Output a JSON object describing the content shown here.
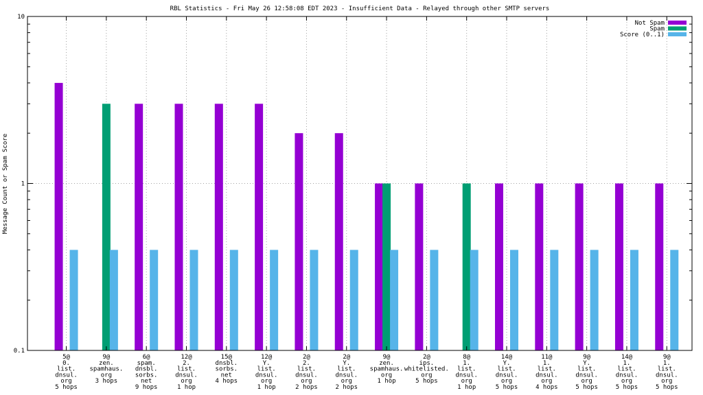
{
  "chart_data": {
    "type": "bar",
    "title": "RBL Statistics - Fri May 26 12:58:08 EDT 2023 - Insufficient Data - Relayed through other SMTP servers",
    "xlabel": "",
    "ylabel": "Message Count or Spam Score",
    "yscale": "log",
    "ylim": [
      0.1,
      10
    ],
    "yticks": [
      "0.1",
      "1",
      "10"
    ],
    "grid": true,
    "legend_position": "top-right",
    "categories": [
      [
        "5@",
        "0.",
        "list.",
        "dnsul.",
        "org",
        "5 hops"
      ],
      [
        "9@",
        "zen.",
        "spamhaus.",
        "org",
        "3 hops"
      ],
      [
        "6@",
        "spam.",
        "dnsbl.",
        "sorbs.",
        "net",
        "9 hops"
      ],
      [
        "12@",
        "2.",
        "list.",
        "dnsul.",
        "org",
        "1 hop"
      ],
      [
        "15@",
        "dnsbl.",
        "sorbs.",
        "net",
        "4 hops"
      ],
      [
        "12@",
        "Y.",
        "list.",
        "dnsul.",
        "org",
        "1 hop"
      ],
      [
        "2@",
        "2.",
        "list.",
        "dnsul.",
        "org",
        "2 hops"
      ],
      [
        "2@",
        "Y.",
        "list.",
        "dnsul.",
        "org",
        "2 hops"
      ],
      [
        "9@",
        "zen.",
        "spamhaus.",
        "org",
        "1 hop"
      ],
      [
        "2@",
        "ips.",
        "whitelisted.",
        "org",
        "5 hops"
      ],
      [
        "8@",
        "1.",
        "list.",
        "dnsul.",
        "org",
        "1 hop"
      ],
      [
        "14@",
        "Y.",
        "list.",
        "dnsul.",
        "org",
        "5 hops"
      ],
      [
        "11@",
        "1.",
        "list.",
        "dnsul.",
        "org",
        "4 hops"
      ],
      [
        "9@",
        "Y.",
        "list.",
        "dnsul.",
        "org",
        "5 hops"
      ],
      [
        "14@",
        "1.",
        "list.",
        "dnsul.",
        "org",
        "5 hops"
      ],
      [
        "9@",
        "1.",
        "list.",
        "dnsul.",
        "org",
        "5 hops"
      ]
    ],
    "series": [
      {
        "name": "Not Spam",
        "color": "#9400d3",
        "values": [
          4,
          null,
          3,
          3,
          3,
          3,
          2,
          2,
          1,
          1,
          null,
          1,
          1,
          1,
          1,
          1
        ]
      },
      {
        "name": "Spam",
        "color": "#009e73",
        "values": [
          null,
          3,
          null,
          null,
          null,
          null,
          null,
          null,
          1,
          null,
          1,
          null,
          null,
          null,
          null,
          null
        ]
      },
      {
        "name": "Score (0..1)",
        "color": "#56b4e9",
        "values": [
          0.4,
          0.4,
          0.4,
          0.4,
          0.4,
          0.4,
          0.4,
          0.4,
          0.4,
          0.4,
          0.4,
          0.4,
          0.4,
          0.4,
          0.4,
          0.4
        ]
      }
    ]
  }
}
